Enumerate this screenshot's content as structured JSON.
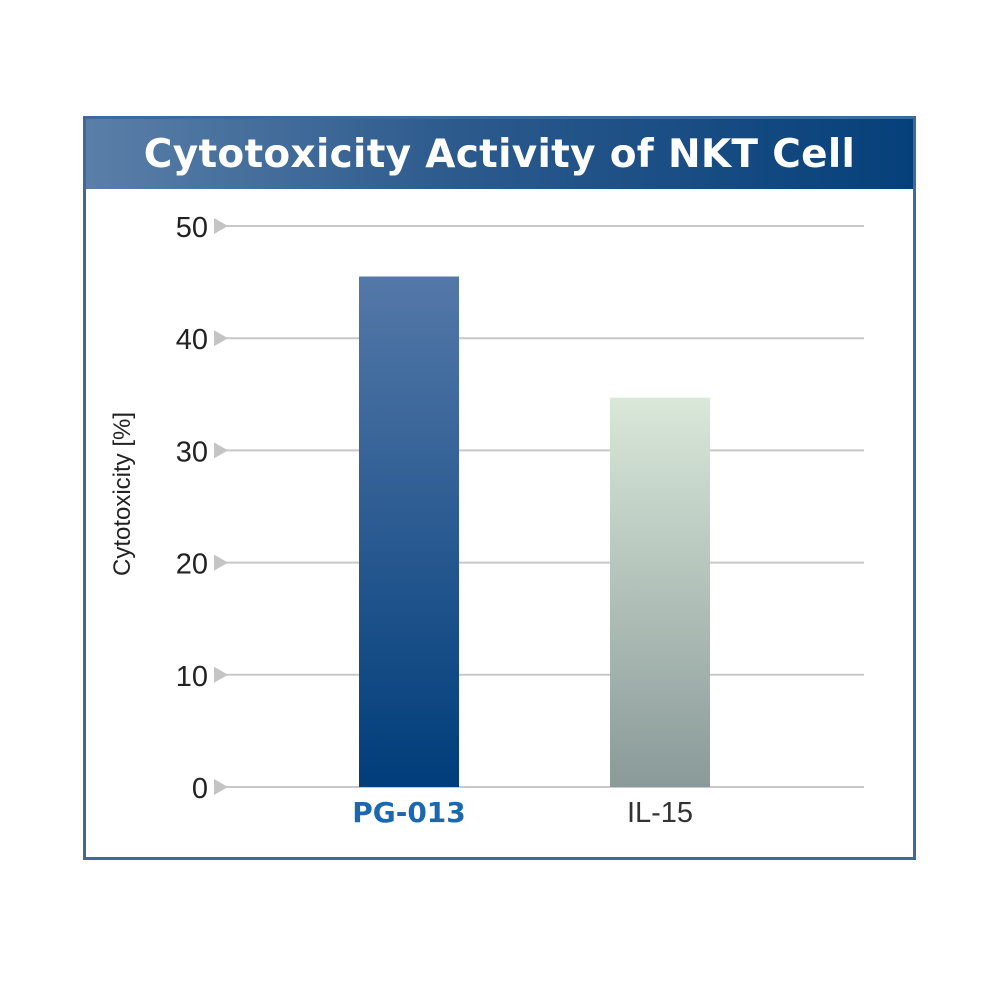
{
  "chart_data": {
    "type": "bar",
    "title": "Cytotoxicity Activity of NKT Cell",
    "xlabel": "",
    "ylabel": "Cytotoxicity [%]",
    "categories": [
      "PG-013",
      "IL-15"
    ],
    "values": [
      45.5,
      34.7
    ],
    "ylim": [
      0,
      50
    ],
    "yticks": [
      "0",
      "10",
      "20",
      "30",
      "40",
      "50"
    ],
    "grid": true,
    "legend": "none",
    "colors": {
      "PG-013": [
        "#5478a8",
        "#003d7a"
      ],
      "IL-15": [
        "#d9e8d9",
        "#8a9a99"
      ],
      "highlight_label": "#1a68b0",
      "gridline": "#c8c8c8",
      "tick_marker": "#c4c4c4",
      "title_bar": "#06407a"
    }
  }
}
